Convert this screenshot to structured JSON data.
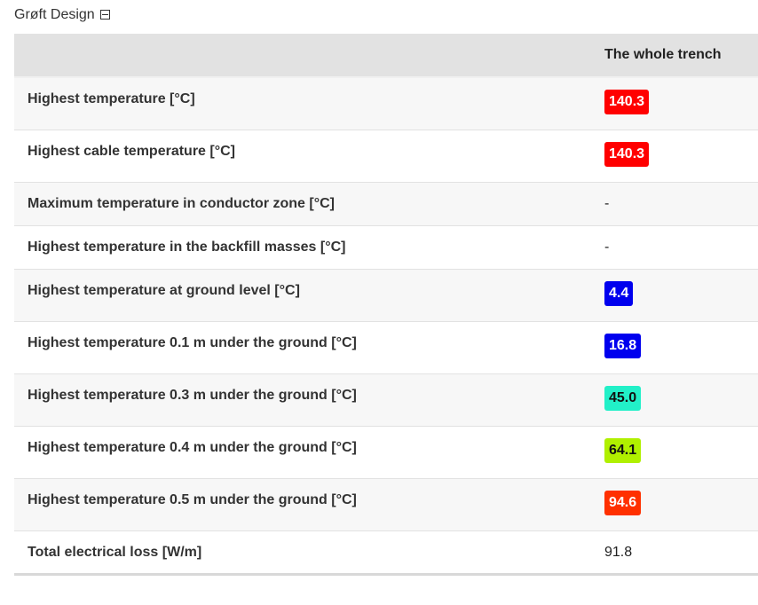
{
  "header": {
    "title": "Grøft Design"
  },
  "table": {
    "columns": [
      "",
      "The whole trench"
    ],
    "rows": [
      {
        "label": "Highest temperature [°C]",
        "value": "140.3",
        "badge": "#ff0000",
        "badge_text": "#ffffff"
      },
      {
        "label": "Highest cable temperature [°C]",
        "value": "140.3",
        "badge": "#ff0000",
        "badge_text": "#ffffff"
      },
      {
        "label": "Maximum temperature in conductor zone [°C]",
        "value": "-"
      },
      {
        "label": "Highest temperature in the backfill masses [°C]",
        "value": "-"
      },
      {
        "label": "Highest temperature at ground level [°C]",
        "value": "4.4",
        "badge": "#0000ee",
        "badge_text": "#ffffff"
      },
      {
        "label": "Highest temperature 0.1 m under the ground [°C]",
        "value": "16.8",
        "badge": "#0000ee",
        "badge_text": "#ffffff"
      },
      {
        "label": "Highest temperature 0.3 m under the ground [°C]",
        "value": "45.0",
        "badge": "#22f0c8",
        "badge_text": "#111111"
      },
      {
        "label": "Highest temperature 0.4 m under the ground [°C]",
        "value": "64.1",
        "badge": "#b0f000",
        "badge_text": "#111111"
      },
      {
        "label": "Highest temperature 0.5 m under the ground [°C]",
        "value": "94.6",
        "badge": "#ff3000",
        "badge_text": "#ffffff"
      },
      {
        "label": "Total electrical loss [W/m]",
        "value": "91.8"
      }
    ]
  }
}
